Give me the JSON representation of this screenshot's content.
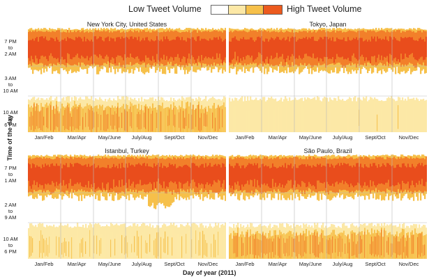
{
  "legend": {
    "low_label": "Low Tweet Volume",
    "high_label": "High Tweet Volume",
    "scale_colors": [
      "#ffffff",
      "#fce8a6",
      "#f6c04a",
      "#f2802a",
      "#e8441a"
    ]
  },
  "axes": {
    "xlabel": "Day of year (2011)",
    "ylabel": "Time of the day"
  },
  "colors": {
    "low": "#fce8a6",
    "medium": "#f6c04a",
    "high": "#f2802a",
    "very_high": "#e8441a",
    "grid": "#bbbbbb"
  },
  "chart_data": [
    {
      "type": "heatmap",
      "title": "New York City, United States",
      "x_ticks": [
        "Jan/Feb",
        "Mar/Apr",
        "May/June",
        "July/Aug",
        "Sept/Oct",
        "Nov/Dec"
      ],
      "y_bands": [
        "7 PM\nto\n2 AM",
        "3 AM\nto\n10 AM",
        "10 AM\nto\n6 PM"
      ],
      "band_intensity": [
        "high",
        "none",
        "medium"
      ],
      "grid": true
    },
    {
      "type": "heatmap",
      "title": "Tokyo, Japan",
      "x_ticks": [
        "Jan/Feb",
        "Mar/Apr",
        "May/June",
        "July/Aug",
        "Sept/Oct",
        "Nov/Dec"
      ],
      "y_bands": [
        "",
        "",
        ""
      ],
      "band_intensity": [
        "high",
        "none",
        "low"
      ],
      "grid": true
    },
    {
      "type": "heatmap",
      "title": "Istanbul, Turkey",
      "x_ticks": [
        "Jan/Feb",
        "Mar/Apr",
        "May/June",
        "July/Aug",
        "Sept/Oct",
        "Nov/Dec"
      ],
      "y_bands": [
        "7 PM\nto\n1 AM",
        "2 AM\nto\n9 AM",
        "10 AM\nto\n6 PM"
      ],
      "band_intensity": [
        "high",
        "none",
        "low-medium"
      ],
      "grid": true
    },
    {
      "type": "heatmap",
      "title": "São Paulo, Brazil",
      "x_ticks": [
        "Jan/Feb",
        "Mar/Apr",
        "May/June",
        "July/Aug",
        "Sept/Oct",
        "Nov/Dec"
      ],
      "y_bands": [
        "",
        "",
        ""
      ],
      "band_intensity": [
        "high",
        "none",
        "medium-high"
      ],
      "grid": true
    }
  ]
}
